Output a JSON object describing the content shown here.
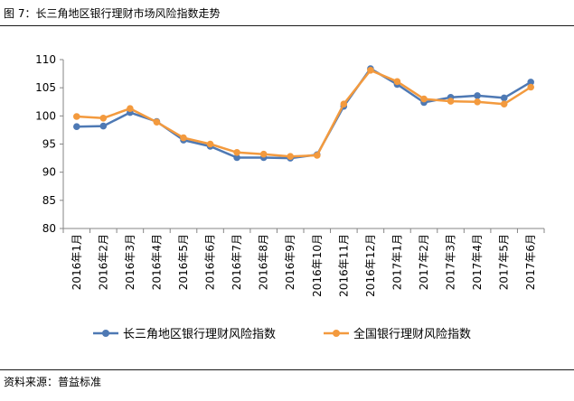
{
  "header": {
    "title": "图 7：长三角地区银行理财市场风险指数走势"
  },
  "footer": {
    "source": "资料来源：普益标准"
  },
  "colors": {
    "series1": "#4e79b4",
    "series2": "#f39a3e"
  },
  "chart_data": {
    "type": "line",
    "title": "",
    "xlabel": "",
    "ylabel": "",
    "ylim": [
      80,
      110
    ],
    "yticks": [
      80,
      85,
      90,
      95,
      100,
      105,
      110
    ],
    "grid": false,
    "legend": "bottom",
    "categories": [
      "2016年1月",
      "2016年2月",
      "2016年3月",
      "2016年4月",
      "2016年5月",
      "2016年6月",
      "2016年7月",
      "2016年8月",
      "2016年9月",
      "2016年10月",
      "2016年11月",
      "2016年12月",
      "2017年1月",
      "2017年2月",
      "2017年3月",
      "2017年4月",
      "2017年5月",
      "2017年6月"
    ],
    "series": [
      {
        "name": "长三角地区银行理财风险指数",
        "values": [
          98.1,
          98.2,
          100.6,
          99.0,
          95.7,
          94.6,
          92.6,
          92.6,
          92.5,
          93.1,
          101.7,
          108.4,
          105.6,
          102.4,
          103.3,
          103.6,
          103.2,
          106.0
        ]
      },
      {
        "name": "全国银行理财风险指数",
        "values": [
          99.9,
          99.6,
          101.3,
          98.9,
          96.1,
          95.0,
          93.5,
          93.2,
          92.8,
          93.0,
          102.1,
          108.1,
          106.1,
          103.0,
          102.6,
          102.5,
          102.1,
          105.1
        ]
      }
    ]
  }
}
